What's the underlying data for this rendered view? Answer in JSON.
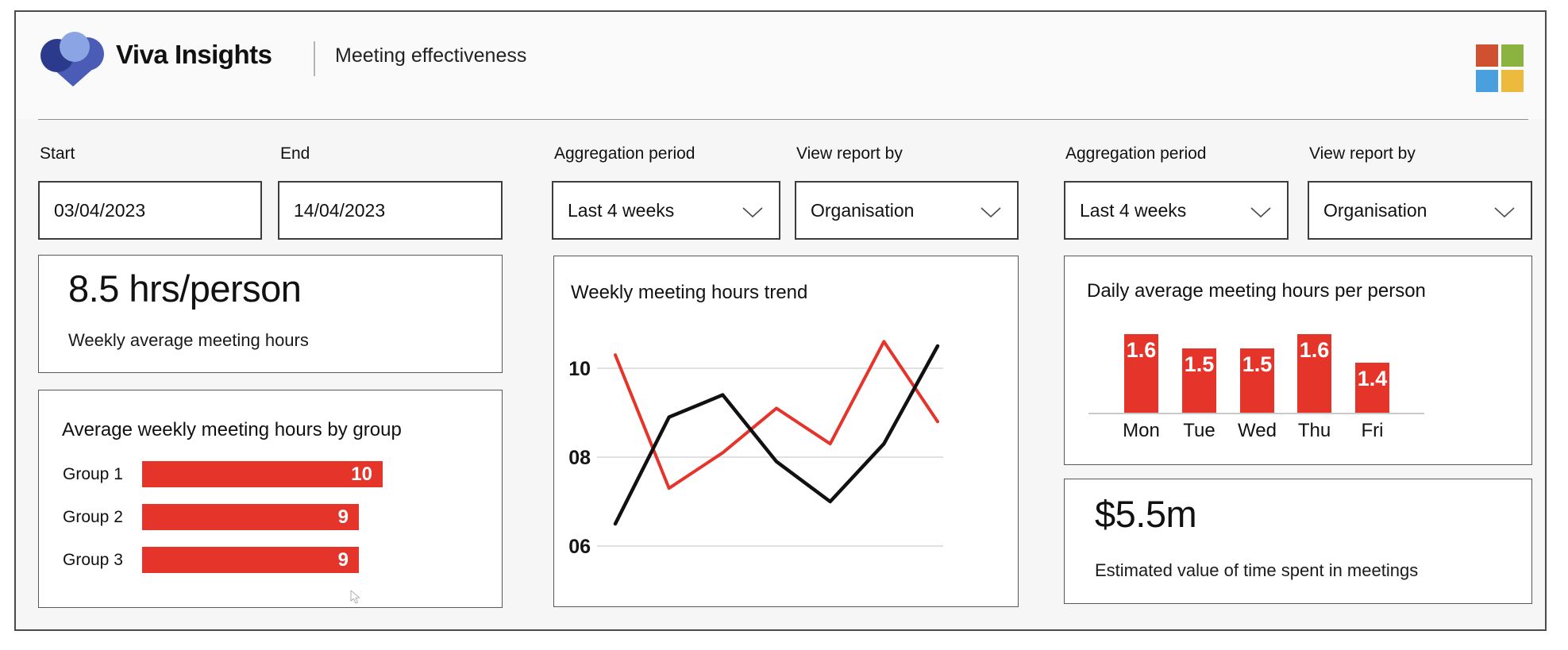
{
  "header": {
    "app_name": "Viva Insights",
    "page_title": "Meeting effectiveness",
    "logo_icon": "viva-insights-heart-logo",
    "ms_logo_icon": "microsoft-four-squares-logo",
    "ms_logo_colors": [
      "#cf5130",
      "#8ab43f",
      "#4a9fdf",
      "#ecba3d"
    ],
    "logo_colors": {
      "navy": "#2c3a8c",
      "royal": "#4a5cb5",
      "light_blue": "#8aa4e4"
    }
  },
  "filters": {
    "left": {
      "start_label": "Start",
      "start_value": "03/04/2023",
      "end_label": "End",
      "end_value": "14/04/2023"
    },
    "middle": {
      "aggregation_label": "Aggregation period",
      "aggregation_value": "Last 4 weeks",
      "view_label": "View report by",
      "view_value": "Organisation"
    },
    "right": {
      "aggregation_label": "Aggregation period",
      "aggregation_value": "Last 4 weeks",
      "view_label": "View report by",
      "view_value": "Organisation"
    }
  },
  "kpis": {
    "weekly": {
      "value": "8.5 hrs/person",
      "caption": "Weekly average meeting hours"
    },
    "cost": {
      "value": "$5.5m",
      "caption": "Estimated value of time spent in meetings"
    }
  },
  "colors": {
    "accent_red": "#e5352b",
    "line_black": "#111111",
    "gridline": "#cfcfcf",
    "bar_value_text": "#ffffff"
  },
  "chart_data": [
    {
      "type": "bar",
      "orientation": "horizontal",
      "title": "Average weekly meeting hours by group",
      "categories": [
        "Group 1",
        "Group 2",
        "Group 3"
      ],
      "values": [
        10,
        9,
        9
      ],
      "xlim": [
        0,
        10
      ],
      "bar_color": "#e5352b",
      "value_labels": "inside-end, white",
      "grid": "off"
    },
    {
      "type": "line",
      "title": "Weekly meeting hours trend",
      "x": [
        1,
        2,
        3,
        4,
        5,
        6,
        7
      ],
      "series": [
        {
          "name": "red-series",
          "color": "#e5352b",
          "values": [
            10.3,
            7.3,
            8.1,
            9.1,
            8.3,
            10.6,
            8.8
          ]
        },
        {
          "name": "black-series",
          "color": "#111111",
          "values": [
            6.5,
            8.9,
            9.4,
            7.9,
            7.0,
            8.3,
            10.5
          ]
        }
      ],
      "yticks": [
        "10",
        "08",
        "06"
      ],
      "ytick_values": [
        10,
        8,
        6
      ],
      "ylim": [
        5.5,
        11
      ],
      "grid": "horizontal",
      "legend": "none"
    },
    {
      "type": "bar",
      "orientation": "vertical",
      "title": "Daily average meeting hours per person",
      "categories": [
        "Mon",
        "Tue",
        "Wed",
        "Thu",
        "Fri"
      ],
      "values": [
        1.6,
        1.5,
        1.5,
        1.6,
        1.4
      ],
      "baseline_value": 1.05,
      "bar_color": "#e5352b",
      "value_labels": "inside-top, white",
      "grid": "off"
    }
  ]
}
